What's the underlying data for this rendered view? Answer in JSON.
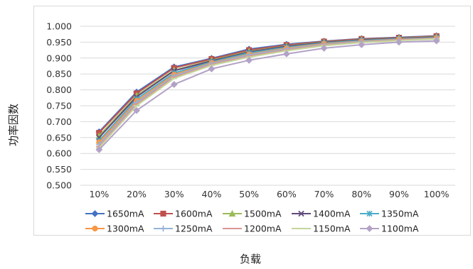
{
  "chart_data": {
    "type": "line",
    "xlabel": "负载",
    "ylabel": "功率因数",
    "ylim": [
      0.5,
      1.0
    ],
    "ytick_step": 0.05,
    "ytick_labels": [
      "0.500",
      "0.550",
      "0.600",
      "0.650",
      "0.700",
      "0.750",
      "0.800",
      "0.850",
      "0.900",
      "0.950",
      "1.000"
    ],
    "categories": [
      "10%",
      "20%",
      "30%",
      "40%",
      "50%",
      "60%",
      "70%",
      "80%",
      "90%",
      "100%"
    ],
    "grid": "horizontal",
    "legend_position": "bottom",
    "series": [
      {
        "name": "1650mA",
        "color": "#4472C4",
        "marker": "diamond",
        "values": [
          0.668,
          0.793,
          0.872,
          0.899,
          0.928,
          0.943,
          0.953,
          0.961,
          0.965,
          0.97
        ]
      },
      {
        "name": "1600mA",
        "color": "#C0504D",
        "marker": "square",
        "values": [
          0.665,
          0.789,
          0.869,
          0.897,
          0.925,
          0.941,
          0.952,
          0.96,
          0.964,
          0.969
        ]
      },
      {
        "name": "1500mA",
        "color": "#9BBB59",
        "marker": "triangle",
        "values": [
          0.655,
          0.782,
          0.862,
          0.893,
          0.921,
          0.938,
          0.95,
          0.958,
          0.963,
          0.967
        ]
      },
      {
        "name": "1400mA",
        "color": "#604A7B",
        "marker": "x",
        "values": [
          0.65,
          0.778,
          0.86,
          0.891,
          0.919,
          0.937,
          0.949,
          0.957,
          0.962,
          0.966
        ]
      },
      {
        "name": "1350mA",
        "color": "#4BACC6",
        "marker": "asterisk",
        "values": [
          0.64,
          0.771,
          0.853,
          0.888,
          0.916,
          0.934,
          0.947,
          0.955,
          0.96,
          0.964
        ]
      },
      {
        "name": "1300mA",
        "color": "#F79646",
        "marker": "circle",
        "values": [
          0.635,
          0.765,
          0.848,
          0.885,
          0.912,
          0.931,
          0.945,
          0.953,
          0.959,
          0.963
        ]
      },
      {
        "name": "1250mA",
        "color": "#95B3D7",
        "marker": "plus",
        "values": [
          0.628,
          0.76,
          0.844,
          0.883,
          0.91,
          0.929,
          0.943,
          0.952,
          0.958,
          0.962
        ]
      },
      {
        "name": "1200mA",
        "color": "#D99694",
        "marker": "dash",
        "values": [
          0.622,
          0.755,
          0.84,
          0.88,
          0.906,
          0.926,
          0.941,
          0.95,
          0.957,
          0.961
        ]
      },
      {
        "name": "1150mA",
        "color": "#C3D69B",
        "marker": "dash",
        "values": [
          0.618,
          0.75,
          0.836,
          0.877,
          0.903,
          0.923,
          0.939,
          0.949,
          0.955,
          0.96
        ]
      },
      {
        "name": "1100mA",
        "color": "#B3A2C7",
        "marker": "diamond",
        "values": [
          0.612,
          0.735,
          0.817,
          0.866,
          0.893,
          0.913,
          0.931,
          0.942,
          0.95,
          0.954
        ]
      }
    ]
  }
}
